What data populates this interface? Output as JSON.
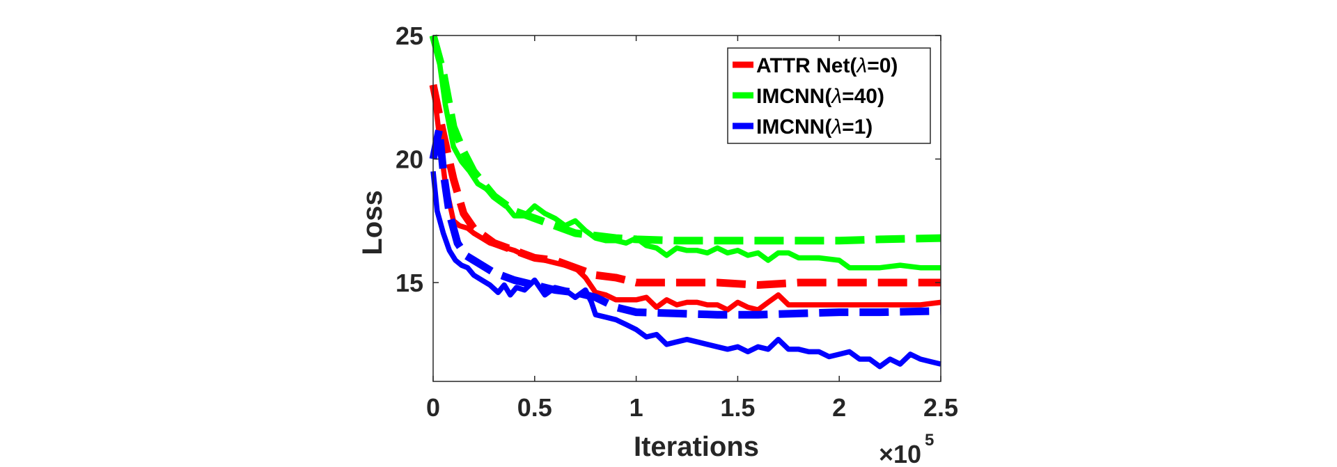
{
  "chart_data": {
    "type": "line",
    "title": "",
    "xlabel": "Iterations",
    "ylabel": "Loss",
    "x_exponent_base": "×10",
    "x_exponent_power": "5",
    "xlim": [
      0,
      2.5
    ],
    "ylim": [
      11,
      25
    ],
    "xticks": [
      0,
      0.5,
      1,
      1.5,
      2,
      2.5
    ],
    "xtick_labels": [
      "0",
      "0.5",
      "1",
      "1.5",
      "2",
      "2.5"
    ],
    "yticks": [
      15,
      20,
      25
    ],
    "ytick_labels": [
      "15",
      "20",
      "25"
    ],
    "grid": false,
    "legend_position": "top-right",
    "legend": [
      {
        "prefix": "ATTR Net(",
        "symbol": "λ",
        "suffix": "=0)",
        "color": "#ff0000"
      },
      {
        "prefix": "IMCNN(",
        "symbol": "λ",
        "suffix": "=40)",
        "color": "#00ff00"
      },
      {
        "prefix": "IMCNN(",
        "symbol": "λ",
        "suffix": "=1)",
        "color": "#0000ff"
      }
    ],
    "series": [
      {
        "legend_index": 0,
        "style": "solid",
        "color": "#ff0000",
        "x": [
          0,
          0.03,
          0.06,
          0.1,
          0.13,
          0.17,
          0.2,
          0.24,
          0.28,
          0.32,
          0.36,
          0.4,
          0.45,
          0.5,
          0.55,
          0.6,
          0.65,
          0.7,
          0.75,
          0.8,
          0.85,
          0.9,
          0.95,
          1.0,
          1.05,
          1.1,
          1.15,
          1.2,
          1.25,
          1.3,
          1.35,
          1.4,
          1.45,
          1.5,
          1.55,
          1.6,
          1.65,
          1.7,
          1.75,
          1.8,
          1.9,
          2.0,
          2.1,
          2.2,
          2.3,
          2.4,
          2.5
        ],
        "y": [
          23.0,
          21.0,
          19.0,
          17.5,
          17.3,
          17.2,
          17.0,
          16.8,
          16.6,
          16.5,
          16.4,
          16.3,
          16.1,
          16.0,
          15.9,
          15.8,
          15.7,
          15.6,
          15.2,
          14.6,
          14.5,
          14.3,
          14.3,
          14.3,
          14.4,
          14.0,
          14.3,
          14.1,
          14.2,
          14.2,
          14.1,
          14.1,
          13.9,
          14.2,
          14.0,
          13.9,
          14.2,
          14.5,
          14.1,
          14.1,
          14.1,
          14.1,
          14.1,
          14.1,
          14.1,
          14.1,
          14.2
        ]
      },
      {
        "legend_index": 0,
        "style": "dashed",
        "color": "#ff0000",
        "x": [
          0,
          0.05,
          0.1,
          0.15,
          0.2,
          0.3,
          0.4,
          0.5,
          0.6,
          0.7,
          0.8,
          0.9,
          1.0,
          1.2,
          1.4,
          1.6,
          1.8,
          2.0,
          2.2,
          2.5
        ],
        "y": [
          23.0,
          21.0,
          19.2,
          17.8,
          17.2,
          16.6,
          16.3,
          16.0,
          15.9,
          15.6,
          15.3,
          15.2,
          15.0,
          15.0,
          15.0,
          14.9,
          15.0,
          15.0,
          15.0,
          15.0
        ]
      },
      {
        "legend_index": 1,
        "style": "solid",
        "color": "#00ff00",
        "x": [
          0,
          0.03,
          0.06,
          0.1,
          0.14,
          0.18,
          0.22,
          0.26,
          0.3,
          0.35,
          0.4,
          0.45,
          0.5,
          0.55,
          0.6,
          0.65,
          0.7,
          0.75,
          0.8,
          0.85,
          0.9,
          0.95,
          1.0,
          1.05,
          1.1,
          1.15,
          1.2,
          1.25,
          1.3,
          1.35,
          1.4,
          1.45,
          1.5,
          1.55,
          1.6,
          1.65,
          1.7,
          1.75,
          1.8,
          1.85,
          1.9,
          2.0,
          2.05,
          2.1,
          2.2,
          2.3,
          2.4,
          2.5
        ],
        "y": [
          25.0,
          24.0,
          22.2,
          20.5,
          19.9,
          19.5,
          19.0,
          18.8,
          18.5,
          18.2,
          17.7,
          17.7,
          18.1,
          17.8,
          17.6,
          17.3,
          17.5,
          17.1,
          16.8,
          16.7,
          16.7,
          16.6,
          16.8,
          16.5,
          16.4,
          16.1,
          16.4,
          16.3,
          16.3,
          16.2,
          16.4,
          16.2,
          16.3,
          16.1,
          16.2,
          15.9,
          16.2,
          16.2,
          16.0,
          16.0,
          16.0,
          15.9,
          15.6,
          15.6,
          15.6,
          15.7,
          15.6,
          15.6
        ]
      },
      {
        "legend_index": 1,
        "style": "dashed",
        "color": "#00ff00",
        "x": [
          0,
          0.05,
          0.1,
          0.15,
          0.2,
          0.3,
          0.4,
          0.5,
          0.6,
          0.7,
          0.8,
          0.9,
          1.0,
          1.2,
          1.4,
          1.6,
          1.8,
          2.0,
          2.2,
          2.5
        ],
        "y": [
          25.0,
          23.5,
          21.3,
          20.3,
          19.5,
          18.5,
          17.9,
          17.6,
          17.3,
          17.0,
          16.9,
          16.8,
          16.75,
          16.7,
          16.7,
          16.7,
          16.7,
          16.7,
          16.75,
          16.8
        ]
      },
      {
        "legend_index": 2,
        "style": "solid",
        "color": "#0000ff",
        "x": [
          0,
          0.02,
          0.05,
          0.08,
          0.11,
          0.14,
          0.17,
          0.2,
          0.24,
          0.28,
          0.32,
          0.35,
          0.38,
          0.41,
          0.45,
          0.5,
          0.55,
          0.6,
          0.65,
          0.7,
          0.75,
          0.78,
          0.8,
          0.85,
          0.9,
          0.95,
          1.0,
          1.05,
          1.1,
          1.15,
          1.2,
          1.25,
          1.3,
          1.35,
          1.4,
          1.45,
          1.5,
          1.55,
          1.6,
          1.65,
          1.7,
          1.75,
          1.8,
          1.85,
          1.9,
          1.95,
          2.0,
          2.05,
          2.1,
          2.15,
          2.2,
          2.25,
          2.3,
          2.35,
          2.4,
          2.45,
          2.5
        ],
        "y": [
          19.5,
          17.9,
          17.0,
          16.3,
          15.9,
          15.7,
          15.6,
          15.3,
          15.1,
          14.9,
          14.6,
          14.9,
          14.5,
          14.8,
          14.7,
          15.1,
          14.5,
          14.8,
          14.7,
          14.4,
          14.7,
          14.2,
          13.7,
          13.6,
          13.5,
          13.3,
          13.1,
          12.8,
          12.9,
          12.5,
          12.6,
          12.7,
          12.6,
          12.5,
          12.4,
          12.3,
          12.4,
          12.2,
          12.4,
          12.3,
          12.7,
          12.3,
          12.3,
          12.2,
          12.2,
          12.0,
          12.1,
          12.2,
          11.9,
          11.9,
          11.6,
          11.9,
          11.7,
          12.1,
          11.9,
          11.8,
          11.7
        ]
      },
      {
        "legend_index": 2,
        "style": "dashed",
        "color": "#0000ff",
        "x": [
          0,
          0.03,
          0.05,
          0.08,
          0.12,
          0.16,
          0.2,
          0.3,
          0.4,
          0.5,
          0.6,
          0.7,
          0.8,
          0.9,
          1.0,
          1.2,
          1.4,
          1.6,
          1.8,
          2.0,
          2.2,
          2.5
        ],
        "y": [
          20.0,
          21.2,
          19.5,
          17.8,
          16.6,
          16.1,
          15.9,
          15.4,
          15.1,
          14.9,
          14.7,
          14.6,
          14.4,
          14.0,
          13.8,
          13.75,
          13.7,
          13.7,
          13.75,
          13.8,
          13.8,
          13.85
        ]
      }
    ]
  }
}
